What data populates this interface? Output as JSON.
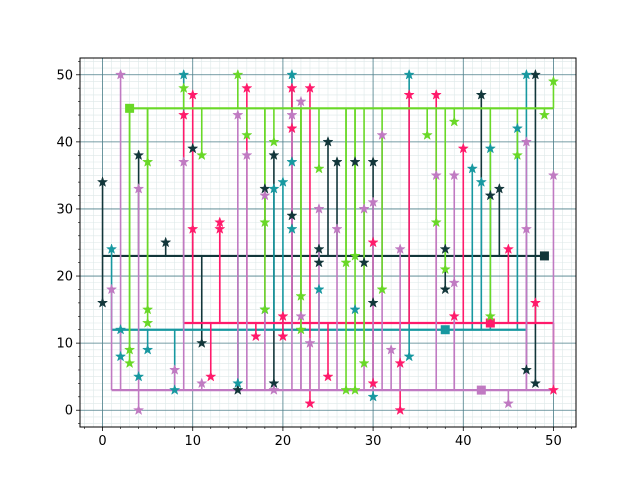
{
  "chart_data": {
    "type": "scatter",
    "title": "",
    "xlabel": "",
    "ylabel": "",
    "xlim": [
      -2.5,
      52.5
    ],
    "ylim": [
      -2.5,
      52.5
    ],
    "x_major_ticks": [
      0,
      10,
      20,
      30,
      40,
      50
    ],
    "y_major_ticks": [
      0,
      10,
      20,
      30,
      40,
      50
    ],
    "x_minor_step": 1,
    "y_minor_step": 1,
    "grid": true,
    "legend": "none",
    "series": [
      {
        "color": "#12363a",
        "marker": "star",
        "baseline": 23,
        "baseline_x": [
          0,
          49
        ],
        "end_marker": {
          "x": 49,
          "y": 23
        },
        "points": [
          [
            0,
            34
          ],
          [
            0,
            16
          ],
          [
            4,
            38
          ],
          [
            7,
            25
          ],
          [
            10,
            39
          ],
          [
            11,
            10
          ],
          [
            15,
            3
          ],
          [
            18,
            33
          ],
          [
            19,
            38
          ],
          [
            19,
            4
          ],
          [
            21,
            29
          ],
          [
            24,
            24
          ],
          [
            24,
            22
          ],
          [
            25,
            40
          ],
          [
            26,
            37
          ],
          [
            28,
            37
          ],
          [
            29,
            22
          ],
          [
            30,
            37
          ],
          [
            30,
            16
          ],
          [
            38,
            24
          ],
          [
            38,
            18
          ],
          [
            42,
            47
          ],
          [
            43,
            32
          ],
          [
            44,
            33
          ],
          [
            47,
            6
          ],
          [
            48,
            50
          ],
          [
            48,
            4
          ]
        ]
      },
      {
        "color": "#1798a0",
        "marker": "star",
        "baseline": 12,
        "baseline_x": [
          1,
          47
        ],
        "end_marker": {
          "x": 38,
          "y": 12
        },
        "points": [
          [
            1,
            24
          ],
          [
            2,
            12
          ],
          [
            2,
            8
          ],
          [
            4,
            5
          ],
          [
            5,
            9
          ],
          [
            8,
            3
          ],
          [
            9,
            50
          ],
          [
            15,
            4
          ],
          [
            18,
            15
          ],
          [
            19,
            33
          ],
          [
            20,
            34
          ],
          [
            21,
            50
          ],
          [
            21,
            37
          ],
          [
            21,
            27
          ],
          [
            24,
            18
          ],
          [
            28,
            15
          ],
          [
            30,
            2
          ],
          [
            34,
            50
          ],
          [
            34,
            8
          ],
          [
            41,
            36
          ],
          [
            42,
            34
          ],
          [
            43,
            39
          ],
          [
            46,
            42
          ],
          [
            47,
            50
          ]
        ]
      },
      {
        "color": "#ff1a6b",
        "marker": "star",
        "baseline": 13,
        "baseline_x": [
          9,
          50
        ],
        "end_marker": {
          "x": 43,
          "y": 13
        },
        "points": [
          [
            9,
            44
          ],
          [
            10,
            47
          ],
          [
            10,
            27
          ],
          [
            12,
            5
          ],
          [
            13,
            28
          ],
          [
            13,
            27
          ],
          [
            16,
            48
          ],
          [
            17,
            11
          ],
          [
            20,
            14
          ],
          [
            20,
            11
          ],
          [
            21,
            48
          ],
          [
            21,
            42
          ],
          [
            23,
            48
          ],
          [
            23,
            1
          ],
          [
            25,
            5
          ],
          [
            30,
            25
          ],
          [
            30,
            4
          ],
          [
            33,
            7
          ],
          [
            33,
            0
          ],
          [
            34,
            47
          ],
          [
            37,
            47
          ],
          [
            39,
            14
          ],
          [
            40,
            39
          ],
          [
            45,
            24
          ],
          [
            48,
            16
          ],
          [
            50,
            3
          ]
        ]
      },
      {
        "color": "#c07ac2",
        "marker": "star",
        "baseline": 3,
        "baseline_x": [
          1,
          50
        ],
        "end_marker": {
          "x": 42,
          "y": 3
        },
        "points": [
          [
            1,
            18
          ],
          [
            2,
            50
          ],
          [
            4,
            33
          ],
          [
            4,
            0
          ],
          [
            8,
            6
          ],
          [
            9,
            37
          ],
          [
            11,
            4
          ],
          [
            15,
            44
          ],
          [
            16,
            38
          ],
          [
            18,
            32
          ],
          [
            19,
            3
          ],
          [
            21,
            44
          ],
          [
            22,
            46
          ],
          [
            22,
            14
          ],
          [
            23,
            10
          ],
          [
            24,
            30
          ],
          [
            26,
            27
          ],
          [
            29,
            30
          ],
          [
            30,
            31
          ],
          [
            31,
            41
          ],
          [
            32,
            9
          ],
          [
            33,
            24
          ],
          [
            37,
            35
          ],
          [
            39,
            35
          ],
          [
            39,
            19
          ],
          [
            45,
            1
          ],
          [
            47,
            27
          ],
          [
            47,
            40
          ],
          [
            50,
            35
          ]
        ]
      },
      {
        "color": "#69d827",
        "marker": "star",
        "baseline": 45,
        "baseline_x": [
          3,
          50
        ],
        "end_marker": {
          "x": 3,
          "y": 45
        },
        "points": [
          [
            3,
            9
          ],
          [
            3,
            7
          ],
          [
            5,
            37
          ],
          [
            5,
            15
          ],
          [
            5,
            13
          ],
          [
            9,
            48
          ],
          [
            11,
            38
          ],
          [
            15,
            50
          ],
          [
            16,
            41
          ],
          [
            18,
            28
          ],
          [
            18,
            15
          ],
          [
            19,
            40
          ],
          [
            22,
            17
          ],
          [
            22,
            12
          ],
          [
            24,
            36
          ],
          [
            27,
            22
          ],
          [
            27,
            3
          ],
          [
            28,
            23
          ],
          [
            28,
            3
          ],
          [
            29,
            7
          ],
          [
            31,
            18
          ],
          [
            36,
            41
          ],
          [
            37,
            28
          ],
          [
            38,
            21
          ],
          [
            39,
            43
          ],
          [
            43,
            14
          ],
          [
            46,
            38
          ],
          [
            49,
            44
          ],
          [
            50,
            49
          ]
        ]
      }
    ]
  }
}
